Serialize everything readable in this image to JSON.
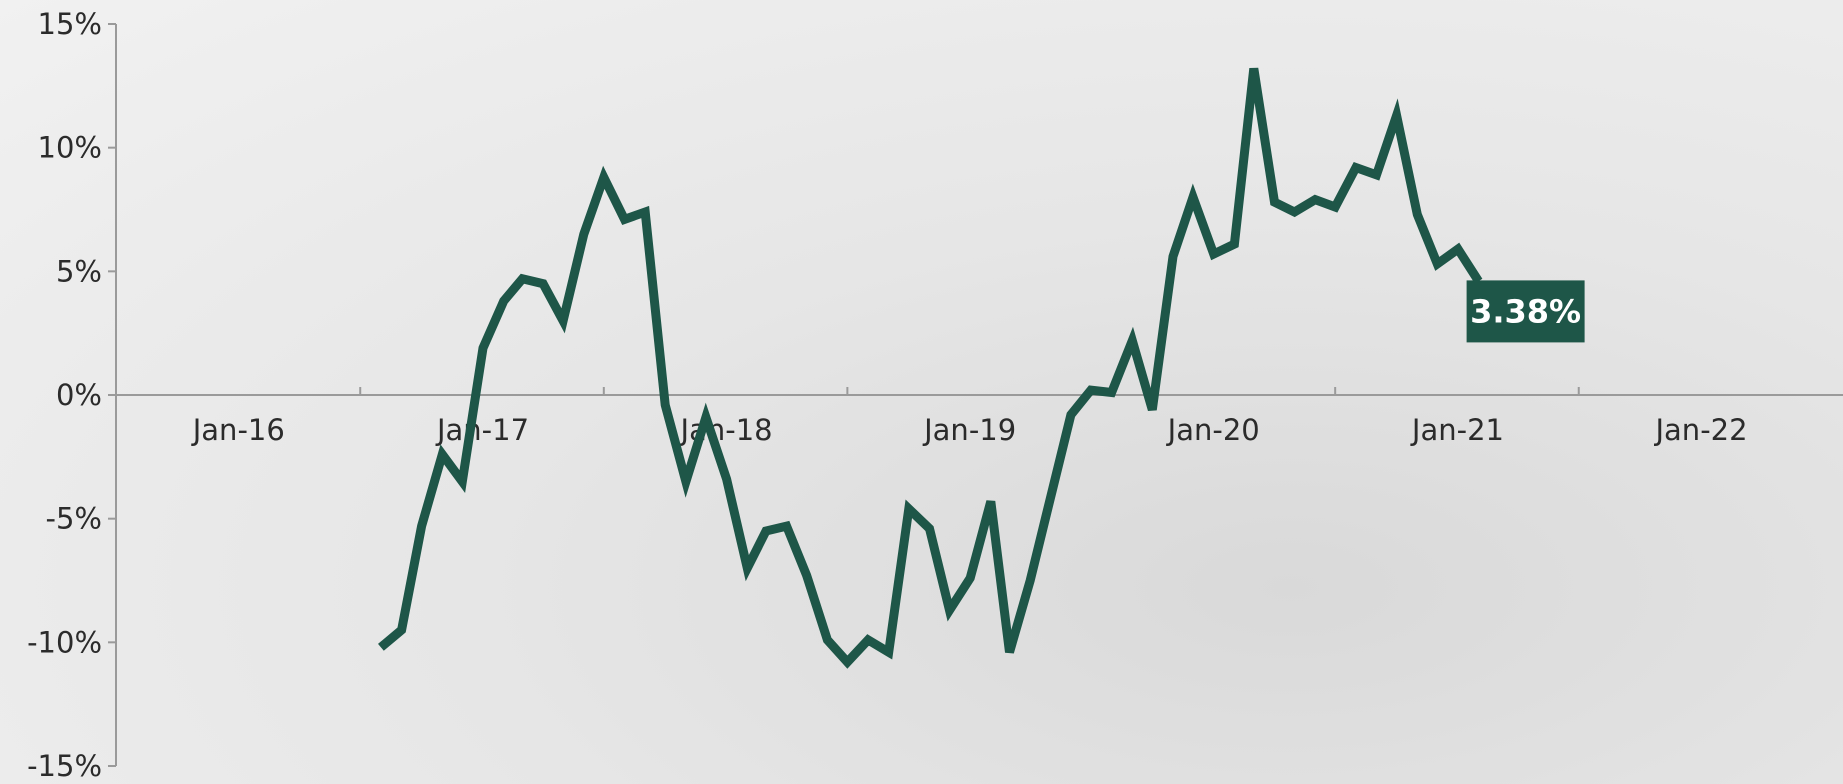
{
  "chart_data": {
    "type": "line",
    "title": "",
    "xlabel": "",
    "ylabel": "",
    "xlim": [
      "2015-07-01",
      "2022-08-01"
    ],
    "ylim": [
      -0.15,
      0.15
    ],
    "y_ticks": [
      {
        "value": 0.15,
        "label": "15%"
      },
      {
        "value": 0.1,
        "label": "10%"
      },
      {
        "value": 0.05,
        "label": "5%"
      },
      {
        "value": 0.0,
        "label": "0%"
      },
      {
        "value": -0.05,
        "label": "-5%"
      },
      {
        "value": -0.1,
        "label": "-10%"
      },
      {
        "value": -0.15,
        "label": "-15%"
      }
    ],
    "x_ticks": [
      {
        "date": "2016-01-01",
        "label": "Jan-16"
      },
      {
        "date": "2017-01-01",
        "label": "Jan-17"
      },
      {
        "date": "2018-01-01",
        "label": "Jan-18"
      },
      {
        "date": "2019-01-01",
        "label": "Jan-19"
      },
      {
        "date": "2020-01-01",
        "label": "Jan-20"
      },
      {
        "date": "2021-01-01",
        "label": "Jan-21"
      },
      {
        "date": "2022-01-01",
        "label": "Jan-22"
      }
    ],
    "x_tick_marks": [
      "2016-07-01",
      "2017-07-01",
      "2018-07-01",
      "2019-07-01",
      "2020-07-01",
      "2021-07-01"
    ],
    "grid": false,
    "legend": "none",
    "color": "#1e5648",
    "series": [
      {
        "x": [
          "2016-08-01",
          "2016-09-01",
          "2016-10-01",
          "2016-11-01",
          "2016-12-01",
          "2017-01-01",
          "2017-02-01",
          "2017-03-01",
          "2017-04-01",
          "2017-05-01",
          "2017-06-01",
          "2017-07-01",
          "2017-08-01",
          "2017-09-01",
          "2017-10-01",
          "2017-11-01",
          "2017-12-01",
          "2018-01-01",
          "2018-02-01",
          "2018-03-01",
          "2018-04-01",
          "2018-05-01",
          "2018-06-01",
          "2018-07-01",
          "2018-08-01",
          "2018-09-01",
          "2018-10-01",
          "2018-11-01",
          "2018-12-01",
          "2019-01-01",
          "2019-02-01",
          "2019-03-01",
          "2019-04-01",
          "2019-05-01",
          "2019-06-01",
          "2019-07-01",
          "2019-08-01",
          "2019-09-01",
          "2019-10-01",
          "2019-11-01",
          "2019-12-01",
          "2020-01-01",
          "2020-02-01",
          "2020-03-01",
          "2020-04-01",
          "2020-05-01",
          "2020-06-01",
          "2020-07-01",
          "2020-08-01",
          "2020-09-01",
          "2020-10-01",
          "2020-11-01",
          "2020-12-01",
          "2021-01-01",
          "2021-02-01"
        ],
        "values": [
          -0.102,
          -0.095,
          -0.053,
          -0.024,
          -0.035,
          0.019,
          0.038,
          0.047,
          0.045,
          0.03,
          0.065,
          0.088,
          0.071,
          0.074,
          -0.004,
          -0.035,
          -0.009,
          -0.034,
          -0.07,
          -0.055,
          -0.053,
          -0.073,
          -0.099,
          -0.108,
          -0.099,
          -0.104,
          -0.046,
          -0.054,
          -0.087,
          -0.074,
          -0.043,
          -0.104,
          -0.075,
          -0.042,
          -0.008,
          0.002,
          0.001,
          0.022,
          -0.006,
          0.056,
          0.08,
          0.057,
          0.061,
          0.132,
          0.078,
          0.074,
          0.079,
          0.076,
          0.092,
          0.089,
          0.113,
          0.073,
          0.053,
          0.059,
          0.046
        ]
      }
    ],
    "callout": {
      "label": "3.38%",
      "value": 0.0338
    }
  }
}
